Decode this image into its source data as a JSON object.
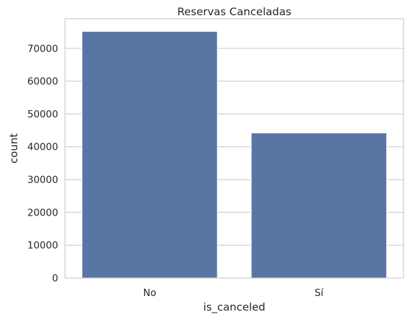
{
  "chart_data": {
    "type": "bar",
    "title": "Reservas Canceladas",
    "xlabel": "is_canceled",
    "ylabel": "count",
    "categories": [
      "No",
      "Sí"
    ],
    "values": [
      75166,
      44224
    ],
    "ylim": [
      0,
      79036
    ],
    "yticks": [
      0,
      10000,
      20000,
      30000,
      40000,
      50000,
      60000,
      70000
    ],
    "grid": "horizontal",
    "bar_color": "#5975a4"
  }
}
